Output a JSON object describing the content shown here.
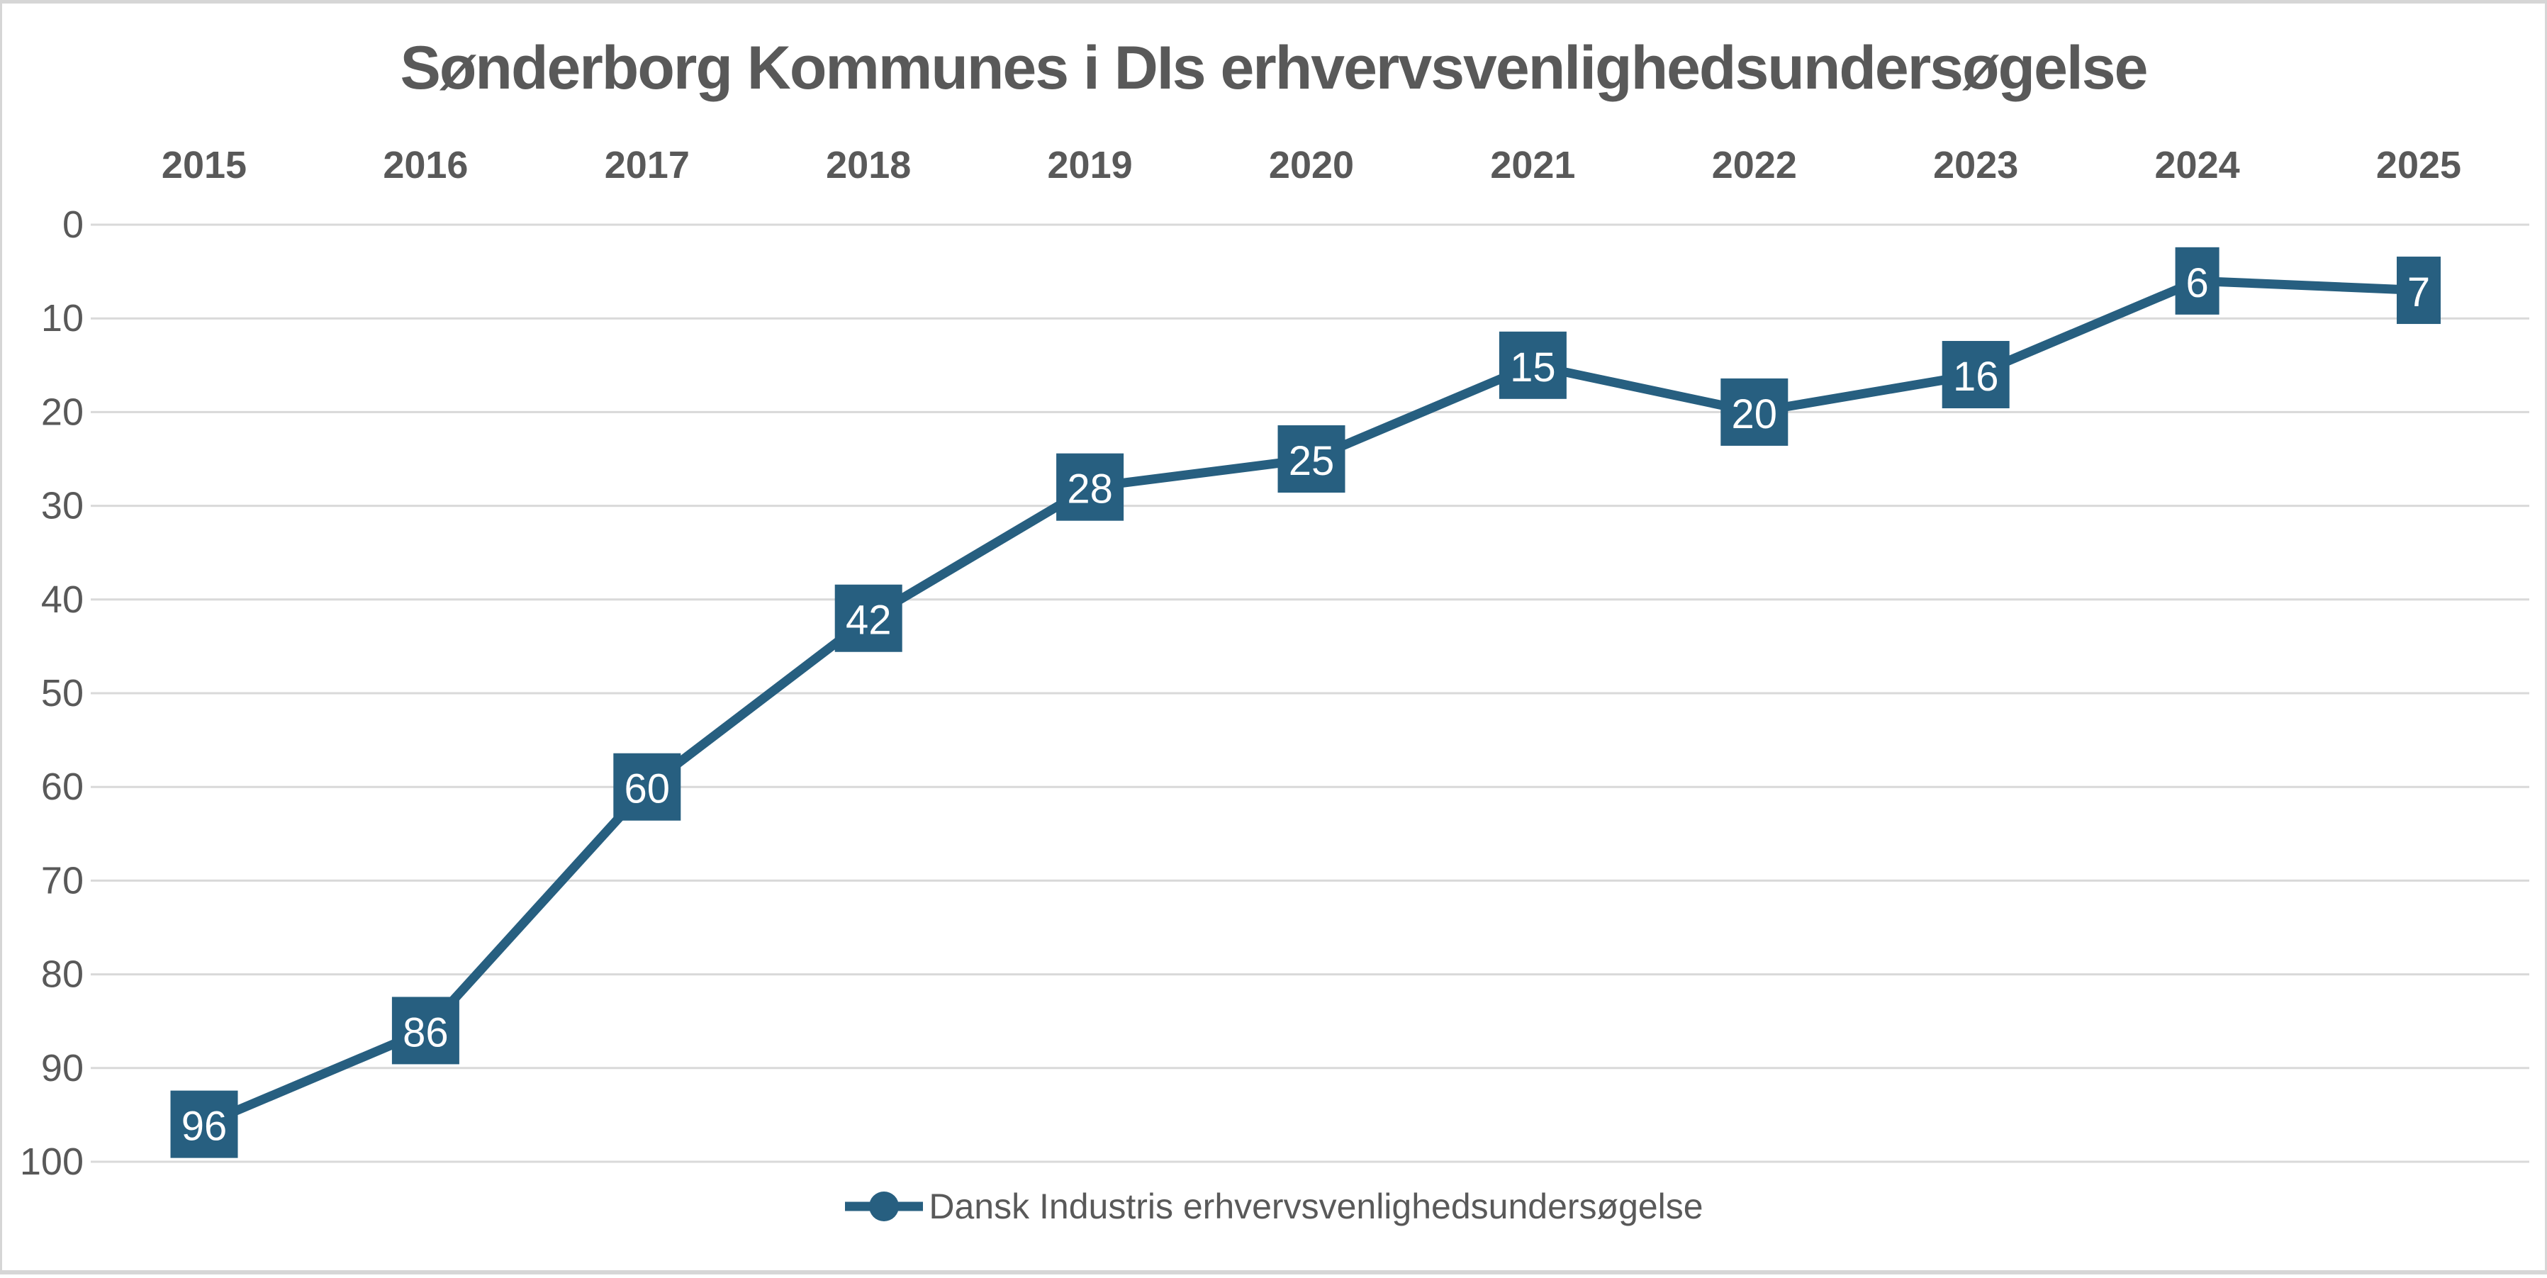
{
  "title": "Sønderborg Kommunes i DIs erhvervsvenlighedsundersøgelse",
  "legend": {
    "label": "Dansk Industris erhvervsvenlighedsundersøgelse"
  },
  "colors": {
    "accent": "#275F80",
    "text": "#595959",
    "gridline": "#D9D9D9",
    "data_label_text": "#FFFFFF",
    "background": "#FFFFFF",
    "border": "#D6D6D6"
  },
  "chart_data": {
    "type": "line",
    "title": "Sønderborg Kommunes i DIs erhvervsvenlighedsundersøgelse",
    "categories": [
      "2015",
      "2016",
      "2017",
      "2018",
      "2019",
      "2020",
      "2021",
      "2022",
      "2023",
      "2024",
      "2025"
    ],
    "series": [
      {
        "name": "Dansk Industris erhvervsvenlighedsundersøgelse",
        "values": [
          96,
          86,
          60,
          42,
          28,
          25,
          15,
          20,
          16,
          6,
          7
        ]
      }
    ],
    "xlabel": "",
    "ylabel": "",
    "y_axis": {
      "min": 0,
      "max": 100,
      "step": 10,
      "inverted": true,
      "ticks": [
        0,
        10,
        20,
        30,
        40,
        50,
        60,
        70,
        80,
        90,
        100
      ]
    },
    "x_axis_position": "top",
    "grid": true,
    "data_labels": "boxed",
    "legend_position": "bottom"
  }
}
